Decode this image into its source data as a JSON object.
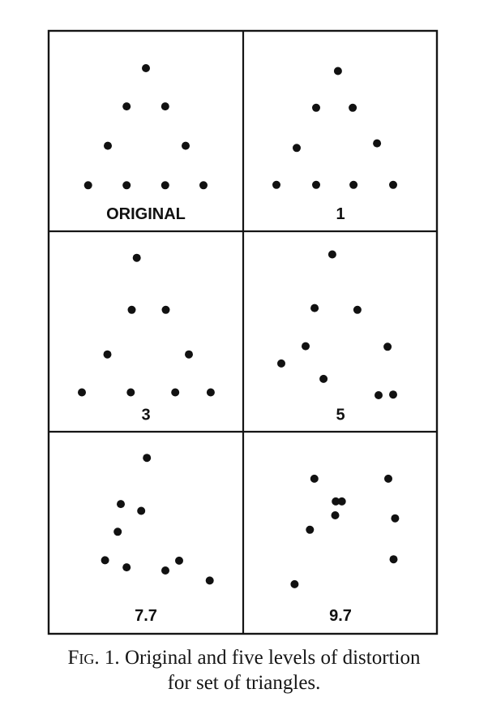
{
  "figure": {
    "caption_label": "Fig. 1.",
    "caption_line1": "Original and five levels of distortion",
    "caption_line2": "for set of triangles.",
    "panels": [
      {
        "label": "ORIGINAL",
        "distortion_level": "ORIGINAL",
        "dots": [
          [
            0.5,
            0.186
          ],
          [
            0.401,
            0.376
          ],
          [
            0.599,
            0.376
          ],
          [
            0.304,
            0.572
          ],
          [
            0.704,
            0.572
          ],
          [
            0.203,
            0.769
          ],
          [
            0.401,
            0.769
          ],
          [
            0.599,
            0.769
          ],
          [
            0.796,
            0.769
          ]
        ]
      },
      {
        "label": "1",
        "distortion_level": "1",
        "dots": [
          [
            0.487,
            0.2
          ],
          [
            0.375,
            0.383
          ],
          [
            0.563,
            0.383
          ],
          [
            0.275,
            0.583
          ],
          [
            0.688,
            0.56
          ],
          [
            0.171,
            0.767
          ],
          [
            0.375,
            0.767
          ],
          [
            0.567,
            0.767
          ],
          [
            0.771,
            0.767
          ]
        ]
      },
      {
        "label": "3",
        "distortion_level": "3",
        "dots": [
          [
            0.453,
            0.13
          ],
          [
            0.427,
            0.389
          ],
          [
            0.602,
            0.389
          ],
          [
            0.302,
            0.611
          ],
          [
            0.721,
            0.611
          ],
          [
            0.171,
            0.8
          ],
          [
            0.422,
            0.8
          ],
          [
            0.651,
            0.8
          ],
          [
            0.833,
            0.8
          ]
        ]
      },
      {
        "label": "5",
        "distortion_level": "5",
        "dots": [
          [
            0.458,
            0.113
          ],
          [
            0.367,
            0.38
          ],
          [
            0.587,
            0.389
          ],
          [
            0.321,
            0.57
          ],
          [
            0.742,
            0.573
          ],
          [
            0.196,
            0.656
          ],
          [
            0.413,
            0.733
          ],
          [
            0.696,
            0.814
          ],
          [
            0.771,
            0.811
          ]
        ]
      },
      {
        "label": "7.7",
        "distortion_level": "7.7",
        "dots": [
          [
            0.505,
            0.126
          ],
          [
            0.371,
            0.356
          ],
          [
            0.476,
            0.39
          ],
          [
            0.355,
            0.494
          ],
          [
            0.29,
            0.636
          ],
          [
            0.401,
            0.671
          ],
          [
            0.6,
            0.687
          ],
          [
            0.671,
            0.638
          ],
          [
            0.828,
            0.737
          ]
        ]
      },
      {
        "label": "9.7",
        "distortion_level": "9.7",
        "dots": [
          [
            0.366,
            0.23
          ],
          [
            0.746,
            0.23
          ],
          [
            0.476,
            0.343
          ],
          [
            0.507,
            0.343
          ],
          [
            0.473,
            0.412
          ],
          [
            0.781,
            0.427
          ],
          [
            0.343,
            0.484
          ],
          [
            0.773,
            0.631
          ],
          [
            0.264,
            0.755
          ]
        ]
      }
    ]
  }
}
